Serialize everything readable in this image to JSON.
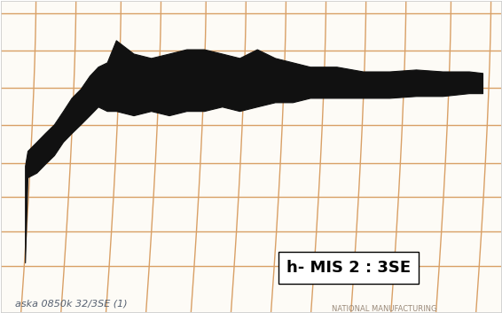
{
  "chart_data": {
    "type": "area_band",
    "label": "h- MIS 2 : 3SE",
    "annotations": [
      "aska 0850k 32/3SE (1)",
      "NATIONAL MANUFACTURING"
    ],
    "x": [
      4.8,
      5.3,
      7.1,
      8.8,
      10.6,
      12.4,
      14.1,
      15.9,
      17.7,
      19.4,
      21.2,
      23.0,
      26.5,
      30.0,
      33.6,
      37.1,
      40.6,
      44.2,
      47.7,
      51.2,
      54.8,
      58.3,
      61.8,
      67.1,
      72.4,
      77.7,
      83.0,
      88.3,
      93.6,
      96.3
    ],
    "high": [
      47.0,
      51.8,
      54.7,
      57.5,
      60.3,
      64.6,
      68.8,
      71.7,
      75.9,
      78.8,
      80.2,
      87.3,
      83.0,
      81.6,
      83.0,
      84.4,
      84.4,
      83.0,
      81.6,
      84.4,
      81.6,
      80.2,
      78.8,
      78.8,
      77.3,
      77.3,
      77.9,
      77.3,
      77.3,
      76.8
    ],
    "low": [
      16.0,
      43.3,
      44.8,
      47.6,
      50.4,
      54.7,
      57.5,
      60.3,
      63.2,
      66.0,
      64.6,
      64.6,
      63.2,
      64.6,
      63.2,
      64.6,
      64.6,
      66.0,
      64.6,
      66.0,
      67.4,
      67.4,
      68.8,
      68.8,
      68.8,
      68.8,
      69.4,
      69.4,
      70.3,
      70.3
    ],
    "color": "#111111",
    "xlim": [
      0,
      100
    ],
    "ylim": [
      0,
      100
    ],
    "xticks": [
      7,
      15,
      24,
      32,
      41,
      49,
      57,
      65,
      73,
      81,
      90,
      98
    ],
    "yticks": [
      15,
      26,
      37,
      48,
      60,
      72,
      84,
      96
    ],
    "grid": true,
    "tick_labels": false
  }
}
